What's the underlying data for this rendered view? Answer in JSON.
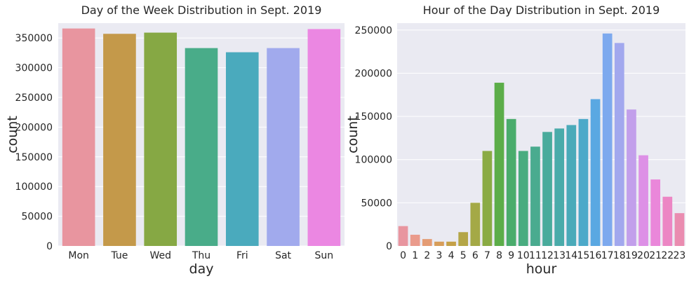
{
  "chart_data": [
    {
      "type": "bar",
      "title": "Day of the Week Distribution in Sept. 2019",
      "xlabel": "day",
      "ylabel": "count",
      "categories": [
        "Mon",
        "Tue",
        "Wed",
        "Thu",
        "Fri",
        "Sat",
        "Sun"
      ],
      "values": [
        366000,
        357000,
        359000,
        333000,
        326000,
        333000,
        365000
      ],
      "colors": [
        "#e8959f",
        "#c4994a",
        "#86a844",
        "#49ac89",
        "#4aaabd",
        "#a1aaed",
        "#eb87e2"
      ],
      "ylim": [
        0,
        375000
      ],
      "yticks": [
        0,
        50000,
        100000,
        150000,
        200000,
        250000,
        300000,
        350000
      ],
      "grid": true,
      "legend": "none"
    },
    {
      "type": "bar",
      "title": "Hour of the Day Distribution in Sept. 2019",
      "xlabel": "hour",
      "ylabel": "count",
      "categories": [
        "0",
        "1",
        "2",
        "3",
        "4",
        "5",
        "6",
        "7",
        "8",
        "9",
        "10",
        "11",
        "12",
        "13",
        "14",
        "15",
        "16",
        "17",
        "18",
        "19",
        "20",
        "21",
        "22",
        "23"
      ],
      "values": [
        23000,
        13000,
        8000,
        5000,
        5000,
        16000,
        50000,
        110000,
        189000,
        147000,
        110000,
        115000,
        132000,
        136000,
        140000,
        147000,
        170000,
        246000,
        235000,
        158000,
        105000,
        77000,
        57000,
        38000
      ],
      "colors": [
        "#e8959f",
        "#ea9b8c",
        "#e49c74",
        "#d79e5a",
        "#c4a148",
        "#b4a647",
        "#a4a946",
        "#8aab44",
        "#5cad49",
        "#4aac6c",
        "#49ac80",
        "#4aab8f",
        "#49ab9c",
        "#4aabaa",
        "#4aaab9",
        "#4ca9c9",
        "#5aa8e2",
        "#7da9ee",
        "#a2a8ee",
        "#c29feb",
        "#dd90e6",
        "#ea87da",
        "#ec86c4",
        "#ea8cb0"
      ],
      "ylim": [
        0,
        258000
      ],
      "yticks": [
        0,
        50000,
        100000,
        150000,
        200000,
        250000
      ],
      "grid": true,
      "legend": "none"
    }
  ]
}
